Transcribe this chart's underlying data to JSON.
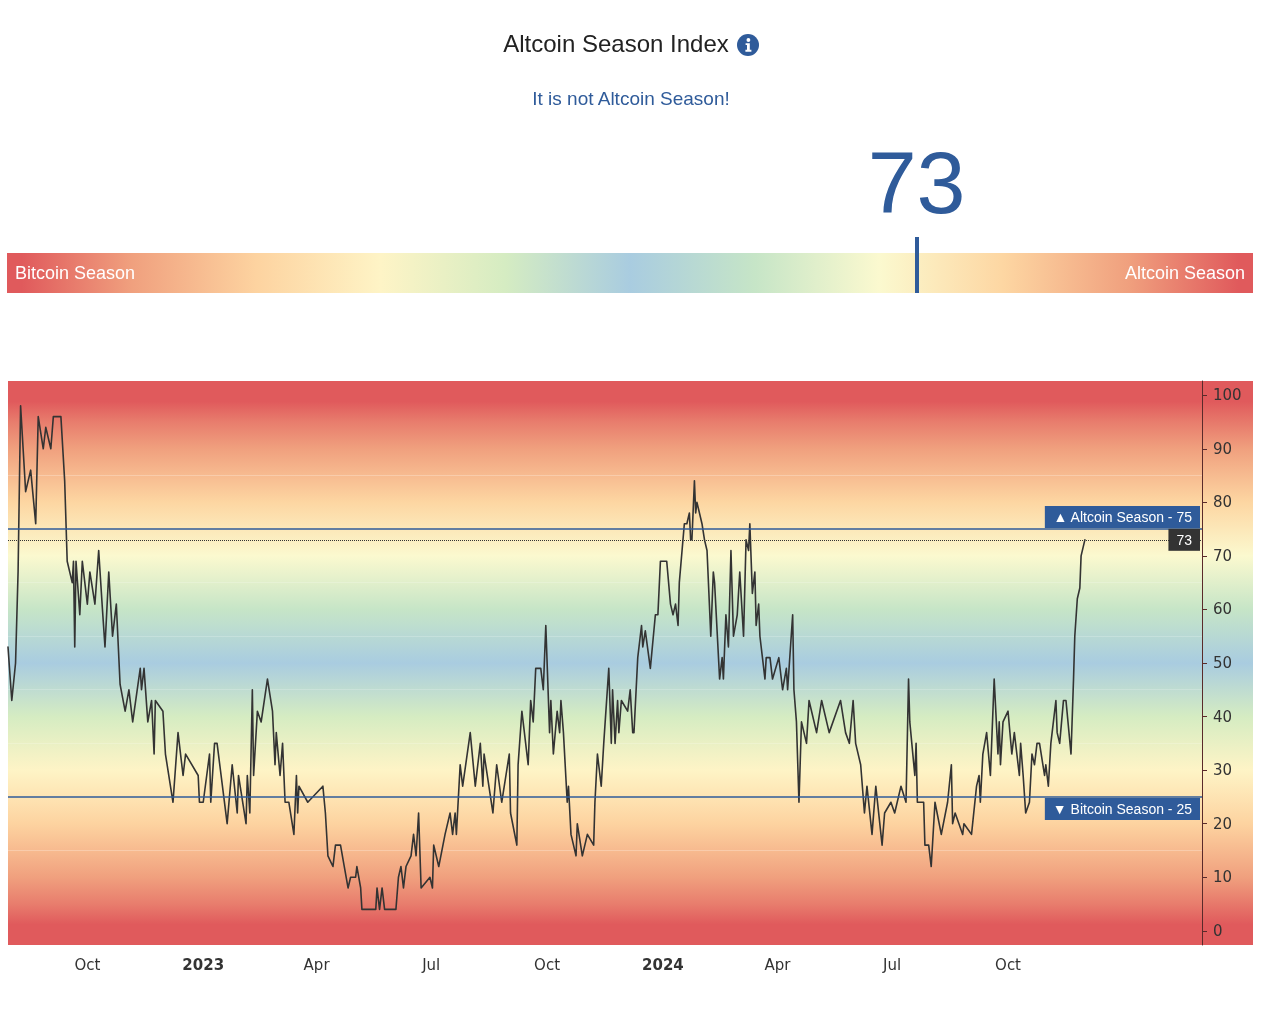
{
  "chart_data": [
    {
      "type": "other",
      "title": "Altcoin Season Index",
      "subtitle": "It is not Altcoin Season!",
      "values": [
        73
      ],
      "color": "#2f5b9a",
      "data_labels": true,
      "annotations": [
        "Bitcoin Season",
        "Altcoin Season"
      ]
    },
    {
      "type": "line",
      "color": "#333333",
      "x": [
        "2022-07-30",
        "2022-08-02",
        "2022-08-05",
        "2022-08-07",
        "2022-08-09",
        "2022-08-11",
        "2022-08-13",
        "2022-08-17",
        "2022-08-21",
        "2022-08-23",
        "2022-08-27",
        "2022-08-29",
        "2022-09-02",
        "2022-09-04",
        "2022-09-10",
        "2022-09-13",
        "2022-09-15",
        "2022-09-19",
        "2022-09-20",
        "2022-09-21",
        "2022-09-22",
        "2022-09-25",
        "2022-09-27",
        "2022-10-01",
        "2022-10-03",
        "2022-10-07",
        "2022-10-10",
        "2022-10-13",
        "2022-10-15",
        "2022-10-18",
        "2022-10-21",
        "2022-10-24",
        "2022-10-27",
        "2022-10-31",
        "2022-11-03",
        "2022-11-06",
        "2022-11-12",
        "2022-11-13",
        "2022-11-15",
        "2022-11-18",
        "2022-11-21",
        "2022-11-23",
        "2022-11-24",
        "2022-11-30",
        "2022-12-02",
        "2022-12-08",
        "2022-12-12",
        "2022-12-16",
        "2022-12-18",
        "2022-12-28",
        "2022-12-29",
        "2023-01-01",
        "2023-01-06",
        "2023-01-07",
        "2023-01-10",
        "2023-01-12",
        "2023-01-20",
        "2023-01-24",
        "2023-01-28",
        "2023-01-29",
        "2023-02-04",
        "2023-02-05",
        "2023-02-07",
        "2023-02-09",
        "2023-02-10",
        "2023-02-13",
        "2023-02-16",
        "2023-02-21",
        "2023-02-25",
        "2023-02-27",
        "2023-02-28",
        "2023-03-03",
        "2023-03-05",
        "2023-03-07",
        "2023-03-10",
        "2023-03-14",
        "2023-03-16",
        "2023-03-17",
        "2023-03-18",
        "2023-03-25",
        "2023-04-06",
        "2023-04-08",
        "2023-04-10",
        "2023-04-14",
        "2023-04-16",
        "2023-04-20",
        "2023-04-23",
        "2023-04-26",
        "2023-04-28",
        "2023-05-02",
        "2023-05-03",
        "2023-05-06",
        "2023-05-07",
        "2023-05-18",
        "2023-05-19",
        "2023-05-21",
        "2023-05-23",
        "2023-05-25",
        "2023-06-03",
        "2023-06-05",
        "2023-06-07",
        "2023-06-09",
        "2023-06-11",
        "2023-06-15",
        "2023-06-17",
        "2023-06-19",
        "2023-06-21",
        "2023-06-23",
        "2023-06-30",
        "2023-07-02",
        "2023-07-03",
        "2023-07-07",
        "2023-07-12",
        "2023-07-16",
        "2023-07-18",
        "2023-07-20",
        "2023-07-21",
        "2023-07-24",
        "2023-07-26",
        "2023-08-01",
        "2023-08-05",
        "2023-08-09",
        "2023-08-11",
        "2023-08-12",
        "2023-08-19",
        "2023-08-22",
        "2023-08-26",
        "2023-09-01",
        "2023-09-02",
        "2023-09-07",
        "2023-09-08",
        "2023-09-11",
        "2023-09-16",
        "2023-09-18",
        "2023-09-20",
        "2023-09-22",
        "2023-09-26",
        "2023-09-28",
        "2023-09-30",
        "2023-10-03",
        "2023-10-04",
        "2023-10-06",
        "2023-10-09",
        "2023-10-11",
        "2023-10-12",
        "2023-10-14",
        "2023-10-17",
        "2023-10-18",
        "2023-10-20",
        "2023-10-24",
        "2023-10-25",
        "2023-10-29",
        "2023-11-02",
        "2023-11-07",
        "2023-11-08",
        "2023-11-10",
        "2023-11-13",
        "2023-11-15",
        "2023-11-19",
        "2023-11-21",
        "2023-11-22",
        "2023-11-24",
        "2023-11-26",
        "2023-11-27",
        "2023-11-29",
        "2023-12-04",
        "2023-12-06",
        "2023-12-08",
        "2023-12-09",
        "2023-12-12",
        "2023-12-15",
        "2023-12-16",
        "2023-12-18",
        "2023-12-22",
        "2023-12-26",
        "2023-12-28",
        "2023-12-30",
        "2024-01-04",
        "2024-01-07",
        "2024-01-09",
        "2024-01-11",
        "2024-01-13",
        "2024-01-14",
        "2024-01-18",
        "2024-01-20",
        "2024-01-22",
        "2024-01-23",
        "2024-01-24",
        "2024-01-26",
        "2024-01-27",
        "2024-01-28",
        "2024-02-01",
        "2024-02-03",
        "2024-02-05",
        "2024-02-08",
        "2024-02-10",
        "2024-02-11",
        "2024-02-15",
        "2024-02-17",
        "2024-02-18",
        "2024-02-20",
        "2024-02-22",
        "2024-02-24",
        "2024-02-26",
        "2024-02-29",
        "2024-03-02",
        "2024-03-05",
        "2024-03-07",
        "2024-03-09",
        "2024-03-10",
        "2024-03-12",
        "2024-03-14",
        "2024-03-15",
        "2024-03-17",
        "2024-03-18",
        "2024-03-22",
        "2024-03-23",
        "2024-03-26",
        "2024-03-28",
        "2024-04-02",
        "2024-04-05",
        "2024-04-08",
        "2024-04-09",
        "2024-04-13",
        "2024-04-14",
        "2024-04-16",
        "2024-04-18",
        "2024-04-20",
        "2024-04-24",
        "2024-04-26",
        "2024-05-02",
        "2024-05-06",
        "2024-05-12",
        "2024-05-21",
        "2024-05-25",
        "2024-05-28",
        "2024-05-31",
        "2024-06-02",
        "2024-06-06",
        "2024-06-09",
        "2024-06-11",
        "2024-06-15",
        "2024-06-18",
        "2024-06-23",
        "2024-06-25",
        "2024-06-30",
        "2024-07-03",
        "2024-07-08",
        "2024-07-12",
        "2024-07-14",
        "2024-07-15",
        "2024-07-19",
        "2024-07-20",
        "2024-07-21",
        "2024-07-26",
        "2024-07-27",
        "2024-07-30",
        "2024-08-01",
        "2024-08-04",
        "2024-08-09",
        "2024-08-14",
        "2024-08-17",
        "2024-08-18",
        "2024-08-20",
        "2024-08-26",
        "2024-08-27",
        "2024-09-02",
        "2024-09-06",
        "2024-09-08",
        "2024-09-09",
        "2024-09-11",
        "2024-09-14",
        "2024-09-17",
        "2024-09-20",
        "2024-09-23",
        "2024-09-24",
        "2024-09-25",
        "2024-09-27",
        "2024-10-01",
        "2024-10-04",
        "2024-10-06",
        "2024-10-10",
        "2024-10-11",
        "2024-10-13",
        "2024-10-15",
        "2024-10-18",
        "2024-10-20",
        "2024-10-22",
        "2024-10-24",
        "2024-10-26",
        "2024-10-30",
        "2024-10-31",
        "2024-11-02",
        "2024-11-04",
        "2024-11-08",
        "2024-11-09",
        "2024-11-11",
        "2024-11-14",
        "2024-11-16",
        "2024-11-20",
        "2024-11-22",
        "2024-11-23",
        "2024-11-25",
        "2024-11-27",
        "2024-11-28",
        "2024-12-01"
      ],
      "values": [
        53,
        43,
        50,
        67,
        98,
        90,
        82,
        86,
        76,
        96,
        90,
        94,
        90,
        96,
        96,
        84,
        69,
        65,
        69,
        53,
        69,
        59,
        69,
        61,
        67,
        61,
        71,
        60,
        53,
        67,
        55,
        61,
        46,
        41,
        45,
        39,
        49,
        45,
        49,
        39,
        43,
        33,
        43,
        41,
        33,
        24,
        37,
        29,
        33,
        29,
        24,
        24,
        33,
        24,
        35,
        35,
        20,
        31,
        22,
        29,
        20,
        29,
        22,
        45,
        29,
        41,
        39,
        47,
        41,
        31,
        37,
        29,
        35,
        24,
        24,
        18,
        29,
        22,
        27,
        24,
        27,
        22,
        14,
        12,
        16,
        16,
        12,
        8,
        10,
        10,
        12,
        8,
        4,
        4,
        8,
        4,
        8,
        4,
        4,
        10,
        12,
        8,
        12,
        14,
        18,
        14,
        22,
        8,
        10,
        8,
        16,
        12,
        18,
        22,
        18,
        22,
        18,
        31,
        27,
        37,
        27,
        35,
        27,
        33,
        22,
        31,
        24,
        33,
        22,
        16,
        31,
        41,
        31,
        43,
        39,
        49,
        49,
        45,
        57,
        37,
        43,
        33,
        41,
        37,
        43,
        37,
        24,
        27,
        18,
        14,
        20,
        14,
        18,
        16,
        24,
        33,
        27,
        35,
        49,
        35,
        45,
        35,
        43,
        37,
        43,
        41,
        45,
        37,
        37,
        51,
        57,
        53,
        56,
        49,
        59,
        59,
        69,
        69,
        61,
        59,
        61,
        57,
        65,
        76,
        76,
        78,
        73,
        73,
        84,
        78,
        80,
        76,
        73,
        71,
        55,
        67,
        65,
        47,
        51,
        47,
        59,
        53,
        71,
        55,
        59,
        67,
        55,
        73,
        71,
        76,
        63,
        67,
        57,
        61,
        55,
        47,
        51,
        51,
        47,
        51,
        45,
        49,
        45,
        59,
        45,
        39,
        24,
        39,
        35,
        43,
        37,
        43,
        37,
        43,
        37,
        35,
        43,
        35,
        31,
        22,
        27,
        18,
        27,
        16,
        22,
        24,
        22,
        27,
        24,
        47,
        39,
        29,
        35,
        24,
        24,
        16,
        16,
        12,
        24,
        18,
        24,
        31,
        20,
        22,
        18,
        20,
        18,
        27,
        29,
        24,
        33,
        37,
        29,
        47,
        33,
        39,
        31,
        39,
        41,
        33,
        37,
        29,
        35,
        29,
        22,
        24,
        33,
        31,
        35,
        35,
        29,
        31,
        27,
        35,
        43,
        37,
        35,
        43,
        43,
        33,
        47,
        55,
        62,
        64,
        70,
        73
      ],
      "xlim": [
        "2022-07-30",
        "2025-03-04"
      ],
      "xticks": [
        {
          "value": "2022-10-01",
          "label": "Oct"
        },
        {
          "value": "2023-01-01",
          "label": "2023"
        },
        {
          "value": "2023-04-01",
          "label": "Apr"
        },
        {
          "value": "2023-07-01",
          "label": "Jul"
        },
        {
          "value": "2023-10-01",
          "label": "Oct"
        },
        {
          "value": "2024-01-01",
          "label": "2024"
        },
        {
          "value": "2024-04-01",
          "label": "Apr"
        },
        {
          "value": "2024-07-01",
          "label": "Jul"
        },
        {
          "value": "2024-10-01",
          "label": "Oct"
        }
      ],
      "ylim": [
        -2.65,
        102.65
      ],
      "yticks": [
        0,
        10,
        20,
        30,
        40,
        50,
        60,
        70,
        80,
        90,
        100
      ],
      "ref_lines": [
        {
          "axis": "y",
          "value": 75,
          "label": "▲ Altcoin Season - 75",
          "color": "#2f5b9a",
          "line_style": "solid"
        },
        {
          "axis": "y",
          "value": 25,
          "label": "▼ Bitcoin Season - 25",
          "color": "#2f5b9a",
          "line_style": "solid"
        },
        {
          "axis": "y",
          "value": 73,
          "label": "73",
          "color": "#333333",
          "line_style": "dotted"
        }
      ],
      "bands": [
        {
          "axis": "y",
          "from": -2.65,
          "to": 5,
          "color": "#e05a5c"
        },
        {
          "axis": "y",
          "from": 5,
          "to": 15,
          "color": "#f0a07e"
        },
        {
          "axis": "y",
          "from": 15,
          "to": 25,
          "color": "#fdd3a0"
        },
        {
          "axis": "y",
          "from": 25,
          "to": 35,
          "color": "#fef4c6"
        },
        {
          "axis": "y",
          "from": 35,
          "to": 45,
          "color": "#d5ecc2"
        },
        {
          "axis": "y",
          "from": 45,
          "to": 55,
          "color": "#a9cce0"
        },
        {
          "axis": "y",
          "from": 55,
          "to": 65,
          "color": "#c6e5c7"
        },
        {
          "axis": "y",
          "from": 65,
          "to": 75,
          "color": "#fbf9cf"
        },
        {
          "axis": "y",
          "from": 75,
          "to": 85,
          "color": "#fdd6a2"
        },
        {
          "axis": "y",
          "from": 85,
          "to": 95,
          "color": "#f0a07e"
        },
        {
          "axis": "y",
          "from": 95,
          "to": 102.65,
          "color": "#e05a5c"
        }
      ]
    }
  ]
}
